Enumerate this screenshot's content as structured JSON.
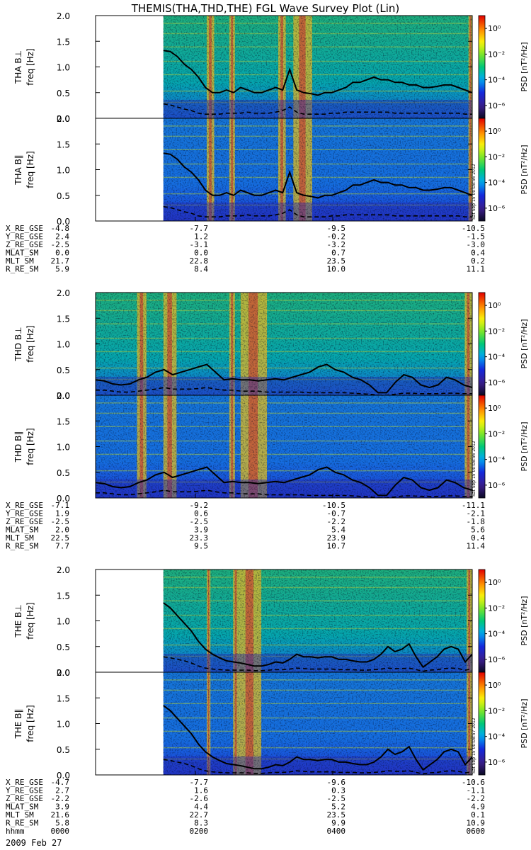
{
  "title": "THEMIS(THA,THD,THE) FGL Wave Survey Plot (Lin)",
  "footer_date": "2009 Feb 27",
  "colorbar": {
    "label": "PSD [nT²/Hz]",
    "ticks": [
      "10⁰",
      "10⁻²",
      "10⁻⁴",
      "10⁻⁶"
    ],
    "log_range": [
      -7,
      1
    ]
  },
  "freq_axis": {
    "ylabel": "freq [Hz]",
    "ylim": [
      0,
      2.0
    ],
    "ticks": [
      "0.0",
      "0.5",
      "1.0",
      "1.5",
      "2.0"
    ]
  },
  "chart_data": [
    {
      "type": "heatmap",
      "probe": "THA",
      "panels": [
        {
          "label": "THA B⊥",
          "stamp": ""
        },
        {
          "label": "THA B∥",
          "stamp": "Sat Sep 15 00:08:56 2012"
        }
      ],
      "data_start_frac": 0.18,
      "bursts": [
        [
          0.295,
          0.315
        ],
        [
          0.355,
          0.37
        ],
        [
          0.485,
          0.505
        ],
        [
          0.525,
          0.575
        ],
        [
          0.99,
          1.0
        ]
      ],
      "solid_line": [
        1.32,
        1.3,
        1.2,
        1.05,
        0.95,
        0.8,
        0.6,
        0.5,
        0.5,
        0.55,
        0.5,
        0.6,
        0.55,
        0.5,
        0.5,
        0.55,
        0.6,
        0.55,
        0.95,
        0.55,
        0.5,
        0.48,
        0.45,
        0.5,
        0.5,
        0.55,
        0.6,
        0.7,
        0.7,
        0.75,
        0.8,
        0.75,
        0.75,
        0.7,
        0.7,
        0.65,
        0.65,
        0.6,
        0.6,
        0.62,
        0.65,
        0.65,
        0.6,
        0.55,
        0.5
      ],
      "dashed_line": [
        0.28,
        0.26,
        0.22,
        0.18,
        0.15,
        0.1,
        0.08,
        0.08,
        0.08,
        0.1,
        0.1,
        0.1,
        0.12,
        0.1,
        0.1,
        0.1,
        0.12,
        0.15,
        0.22,
        0.12,
        0.08,
        0.08,
        0.08,
        0.08,
        0.1,
        0.1,
        0.12,
        0.12,
        0.12,
        0.12,
        0.12,
        0.12,
        0.12,
        0.1,
        0.1,
        0.1,
        0.1,
        0.1,
        0.1,
        0.1,
        0.1,
        0.1,
        0.1,
        0.08,
        0.08
      ],
      "ephemeris": [
        {
          "name": "X_RE_GSE",
          "values": [
            "-4.8",
            "-7.7",
            "-9.5",
            "-10.5"
          ]
        },
        {
          "name": "Y_RE_GSE",
          "values": [
            "2.4",
            "1.2",
            "-0.2",
            "-1.5"
          ]
        },
        {
          "name": "Z_RE_GSE",
          "values": [
            "-2.5",
            "-3.1",
            "-3.2",
            "-3.0"
          ]
        },
        {
          "name": "MLAT_SM",
          "values": [
            "0.0",
            "0.0",
            "0.7",
            "0.4"
          ]
        },
        {
          "name": "MLT_SM",
          "values": [
            "21.7",
            "22.8",
            "23.5",
            "0.2"
          ]
        },
        {
          "name": "R_RE_SM",
          "values": [
            "5.9",
            "8.4",
            "10.0",
            "11.1"
          ]
        }
      ]
    },
    {
      "type": "heatmap",
      "probe": "THD",
      "panels": [
        {
          "label": "THD B⊥",
          "stamp": ""
        },
        {
          "label": "THD B∥",
          "stamp": "Sat Sep 15 00:08:56 2012"
        }
      ],
      "data_start_frac": 0.0,
      "bursts": [
        [
          0.11,
          0.135
        ],
        [
          0.18,
          0.215
        ],
        [
          0.355,
          0.37
        ],
        [
          0.385,
          0.455
        ],
        [
          0.98,
          1.0
        ]
      ],
      "solid_line": [
        0.3,
        0.28,
        0.22,
        0.2,
        0.22,
        0.3,
        0.35,
        0.45,
        0.5,
        0.4,
        0.45,
        0.5,
        0.55,
        0.6,
        0.45,
        0.3,
        0.32,
        0.3,
        0.3,
        0.28,
        0.3,
        0.32,
        0.3,
        0.35,
        0.4,
        0.45,
        0.55,
        0.6,
        0.5,
        0.45,
        0.35,
        0.3,
        0.2,
        0.05,
        0.05,
        0.25,
        0.4,
        0.35,
        0.2,
        0.15,
        0.2,
        0.35,
        0.3,
        0.2,
        0.15
      ],
      "dashed_line": [
        0.1,
        0.1,
        0.08,
        0.06,
        0.06,
        0.08,
        0.1,
        0.12,
        0.15,
        0.12,
        0.12,
        0.12,
        0.13,
        0.15,
        0.12,
        0.1,
        0.1,
        0.08,
        0.08,
        0.08,
        0.06,
        0.06,
        0.06,
        0.06,
        0.06,
        0.05,
        0.05,
        0.05,
        0.05,
        0.05,
        0.04,
        0.03,
        0.02,
        0.0,
        0.0,
        0.02,
        0.04,
        0.04,
        0.03,
        0.03,
        0.03,
        0.04,
        0.04,
        0.03,
        0.03
      ],
      "ephemeris": [
        {
          "name": "X_RE_GSE",
          "values": [
            "-7.1",
            "-9.2",
            "-10.5",
            "-11.1"
          ]
        },
        {
          "name": "Y_RE_GSE",
          "values": [
            "1.9",
            "0.6",
            "-0.7",
            "-2.1"
          ]
        },
        {
          "name": "Z_RE_GSE",
          "values": [
            "-2.5",
            "-2.5",
            "-2.2",
            "-1.8"
          ]
        },
        {
          "name": "MLAT_SM",
          "values": [
            "2.0",
            "3.9",
            "5.4",
            "5.6"
          ]
        },
        {
          "name": "MLT_SM",
          "values": [
            "22.5",
            "23.3",
            "23.9",
            "0.4"
          ]
        },
        {
          "name": "R_RE_SM",
          "values": [
            "7.7",
            "9.5",
            "10.7",
            "11.4"
          ]
        }
      ]
    },
    {
      "type": "heatmap",
      "probe": "THE",
      "panels": [
        {
          "label": "THE B⊥",
          "stamp": ""
        },
        {
          "label": "THE B∥",
          "stamp": "Sat Sep 15 00:08:57 2012"
        }
      ],
      "data_start_frac": 0.18,
      "bursts": [
        [
          0.295,
          0.305
        ],
        [
          0.365,
          0.38
        ],
        [
          0.38,
          0.44
        ],
        [
          0.985,
          1.0
        ]
      ],
      "solid_line": [
        1.35,
        1.25,
        1.1,
        0.95,
        0.8,
        0.6,
        0.45,
        0.35,
        0.28,
        0.22,
        0.2,
        0.18,
        0.15,
        0.12,
        0.12,
        0.15,
        0.2,
        0.18,
        0.25,
        0.35,
        0.3,
        0.3,
        0.28,
        0.3,
        0.3,
        0.25,
        0.25,
        0.22,
        0.2,
        0.2,
        0.25,
        0.35,
        0.5,
        0.4,
        0.45,
        0.55,
        0.3,
        0.1,
        0.2,
        0.3,
        0.45,
        0.5,
        0.45,
        0.2,
        0.35
      ],
      "dashed_line": [
        0.3,
        0.28,
        0.25,
        0.22,
        0.18,
        0.12,
        0.08,
        0.06,
        0.05,
        0.04,
        0.04,
        0.04,
        0.04,
        0.03,
        0.03,
        0.04,
        0.05,
        0.05,
        0.06,
        0.08,
        0.07,
        0.06,
        0.06,
        0.06,
        0.06,
        0.05,
        0.05,
        0.05,
        0.04,
        0.04,
        0.05,
        0.06,
        0.08,
        0.07,
        0.07,
        0.08,
        0.05,
        0.02,
        0.04,
        0.05,
        0.07,
        0.08,
        0.07,
        0.04,
        0.06
      ],
      "ephemeris": [
        {
          "name": "X_RE_GSE",
          "values": [
            "-4.7",
            "-7.7",
            "-9.6",
            "-10.6"
          ]
        },
        {
          "name": "Y_RE_GSE",
          "values": [
            "2.7",
            "1.6",
            "0.3",
            "-1.1"
          ]
        },
        {
          "name": "Z_RE_GSE",
          "values": [
            "-2.2",
            "-2.6",
            "-2.5",
            "-2.2"
          ]
        },
        {
          "name": "MLAT_SM",
          "values": [
            "3.9",
            "4.4",
            "5.2",
            "4.9"
          ]
        },
        {
          "name": "MLT_SM",
          "values": [
            "21.6",
            "22.7",
            "23.5",
            "0.1"
          ]
        },
        {
          "name": "R_RE_SM",
          "values": [
            "5.8",
            "8.3",
            "9.9",
            "10.9"
          ]
        },
        {
          "name": "hhmm",
          "values": [
            "0000",
            "0200",
            "0400",
            "0600"
          ]
        }
      ]
    }
  ]
}
